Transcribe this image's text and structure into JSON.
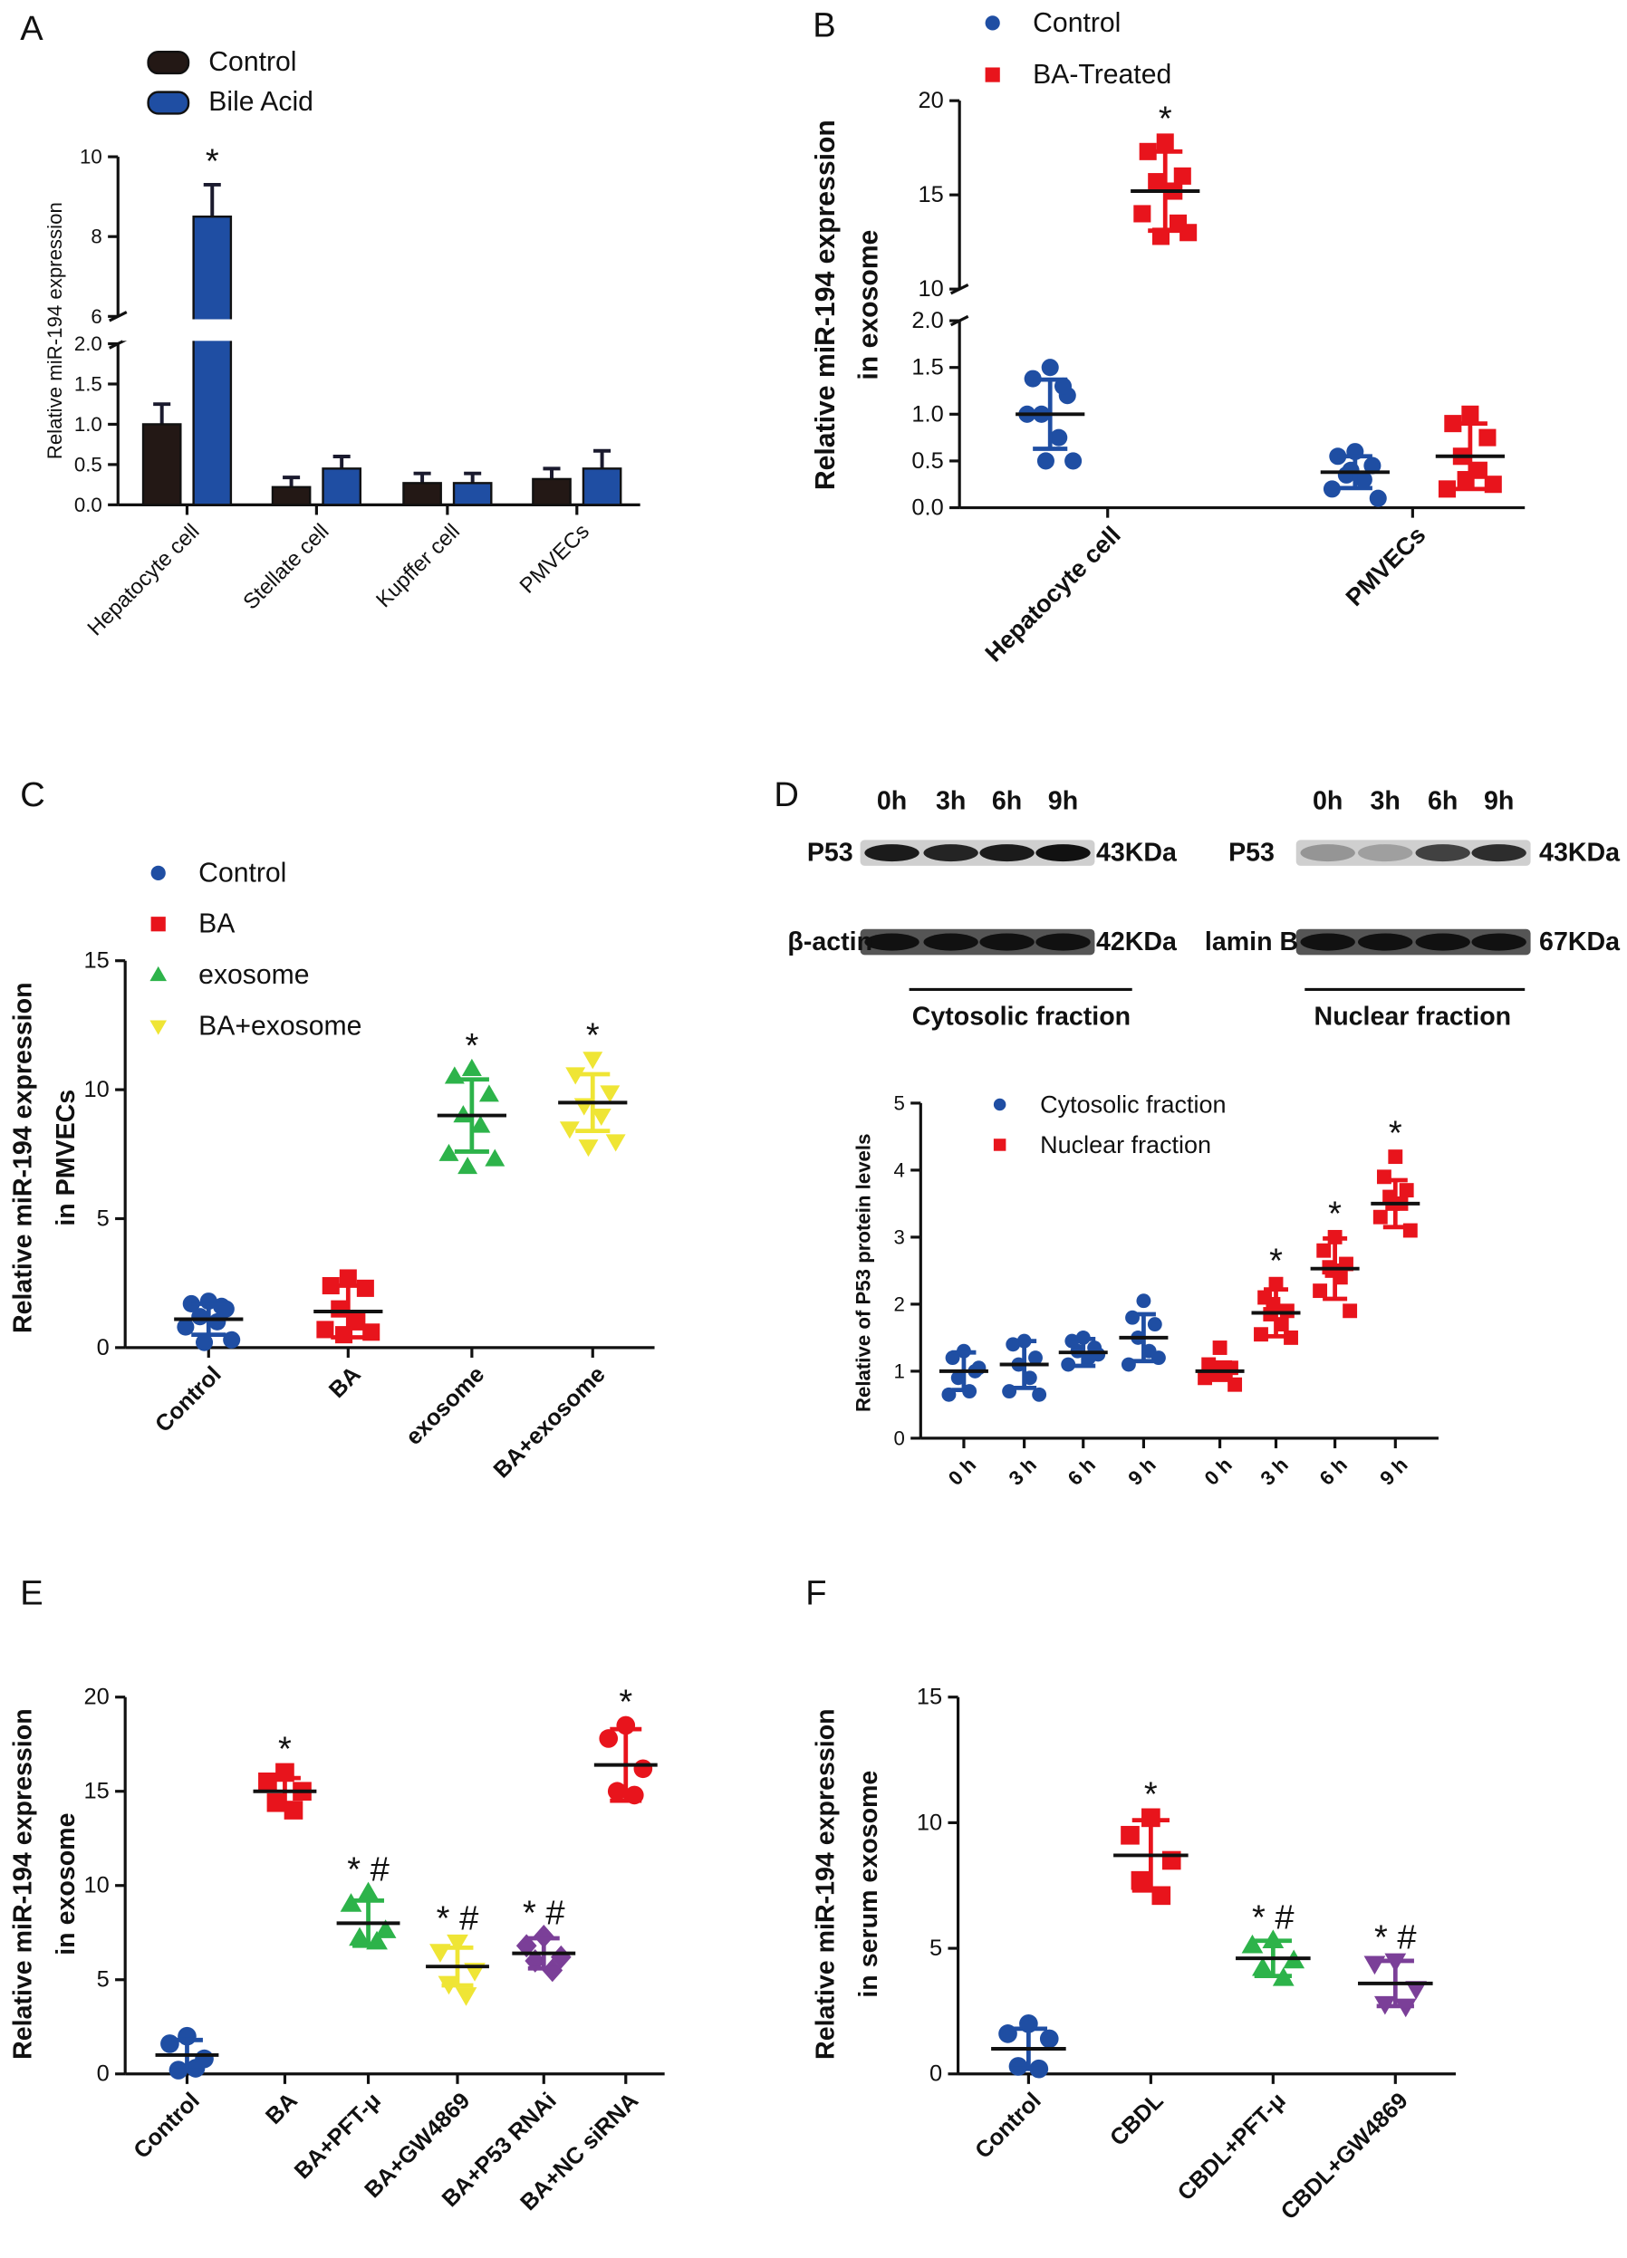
{
  "chart_data": [
    {
      "panel": "A",
      "type": "bar",
      "ylabel": "Relative miR-194 expression",
      "categories": [
        "Hepatocyte cell",
        "Stellate cell",
        "Kupffer cell",
        "PMVECs"
      ],
      "series": [
        {
          "name": "Control",
          "color": "#231815",
          "values": [
            1.0,
            0.22,
            0.27,
            0.32
          ],
          "errors": [
            0.25,
            0.12,
            0.12,
            0.13
          ]
        },
        {
          "name": "Bile Acid",
          "color": "#1f4ea3",
          "values": [
            8.5,
            0.45,
            0.27,
            0.45
          ],
          "errors": [
            0.8,
            0.15,
            0.12,
            0.22
          ],
          "labels": [
            "*",
            null,
            null,
            null
          ]
        }
      ],
      "ylim": [
        0,
        10
      ],
      "ybreak": [
        2,
        6
      ],
      "yticks": [
        {
          "value": 0,
          "label": "0.0"
        },
        0.5,
        {
          "value": 1,
          "label": "1.0"
        },
        1.5,
        {
          "value": 2,
          "label": "2.0"
        },
        6,
        8,
        10
      ]
    },
    {
      "panel": "B",
      "type": "dotplot",
      "ylabel": [
        "Relative miR-194 expression",
        "in exosome"
      ],
      "categories": [
        "Hepatocyte cell",
        "PMVECs"
      ],
      "series": [
        {
          "name": "Control",
          "color": "#1f4ea3",
          "marker": "circle",
          "means": [
            1.0,
            0.38
          ],
          "sds": [
            0.37,
            0.17
          ],
          "points": [
            [
              1.5,
              1.38,
              1.2,
              1.0,
              0.75,
              1.0,
              0.5,
              0.5,
              1.3
            ],
            [
              0.6,
              0.55,
              0.45,
              0.35,
              0.3,
              0.2,
              0.1,
              0.4
            ]
          ]
        },
        {
          "name": "BA-Treated",
          "color": "#e8141c",
          "marker": "square",
          "means": [
            15.2,
            0.55
          ],
          "sds": [
            2.1,
            0.35
          ],
          "points": [
            [
              17.8,
              17.3,
              16.0,
              15.7,
              15.2,
              14.0,
              13.0,
              12.8,
              13.5
            ],
            [
              1.0,
              0.9,
              0.75,
              0.55,
              0.4,
              0.2,
              0.25,
              0.3
            ]
          ],
          "labels": [
            "*",
            null
          ]
        }
      ],
      "ylim": [
        0,
        20
      ],
      "ybreak": [
        2,
        10
      ],
      "yticks": [
        {
          "value": 0,
          "label": "0.0"
        },
        0.5,
        {
          "value": 1,
          "label": "1.0"
        },
        1.5,
        {
          "value": 2,
          "label": "2.0"
        },
        10,
        15,
        20
      ]
    },
    {
      "panel": "C",
      "type": "dotplot",
      "ylabel": [
        "Relative miR-194 expression",
        "in PMVECs"
      ],
      "categories": [
        "Control",
        "BA",
        "exosome",
        "BA+exosome"
      ],
      "series": [
        {
          "name": "Control",
          "color": "#1f4ea3",
          "marker": "circle",
          "means": [
            1.1,
            null,
            null,
            null
          ],
          "sds": [
            0.6,
            null,
            null,
            null
          ],
          "points": [
            [
              1.8,
              1.7,
              1.5,
              1.2,
              1.0,
              0.8,
              0.3,
              0.2,
              1.6
            ],
            null,
            null,
            null
          ]
        },
        {
          "name": "BA",
          "color": "#e8141c",
          "marker": "square",
          "means": [
            null,
            1.4,
            null,
            null
          ],
          "sds": [
            null,
            1.0,
            null,
            null
          ],
          "points": [
            null,
            [
              2.7,
              2.4,
              2.3,
              1.5,
              1.0,
              0.7,
              0.6,
              0.5
            ],
            null,
            null
          ]
        },
        {
          "name": "exosome",
          "color": "#2db34a",
          "marker": "tri",
          "means": [
            null,
            null,
            9.0,
            null
          ],
          "sds": [
            null,
            null,
            1.4,
            null
          ],
          "points": [
            null,
            null,
            [
              10.8,
              10.5,
              9.8,
              9.0,
              8.6,
              7.5,
              7.3,
              7.0
            ],
            null
          ],
          "labels": [
            null,
            null,
            "*",
            null
          ]
        },
        {
          "name": "BA+exosome",
          "color": "#efe535",
          "marker": "dtri",
          "means": [
            null,
            null,
            null,
            9.5
          ],
          "sds": [
            null,
            null,
            null,
            1.1
          ],
          "points": [
            null,
            null,
            null,
            [
              11.2,
              10.6,
              9.9,
              9.4,
              9.0,
              8.5,
              8.0,
              7.8
            ]
          ],
          "labels": [
            null,
            null,
            null,
            "*"
          ]
        }
      ],
      "ylim": [
        0,
        15
      ],
      "yticks": [
        0,
        5,
        10,
        15
      ]
    },
    {
      "panel": "D",
      "type": "dotplot",
      "ylabel": "Relative of P53 protein levels",
      "blot": {
        "left": {
          "lanes": [
            "0h",
            "3h",
            "6h",
            "9h"
          ],
          "rows": [
            {
              "name": "P53",
              "size": "43KDa"
            },
            {
              "name": "β-actin",
              "size": "42KDa"
            }
          ],
          "fraction": "Cytosolic fraction"
        },
        "right": {
          "lanes": [
            "0h",
            "3h",
            "6h",
            "9h"
          ],
          "rows": [
            {
              "name": "P53",
              "size": "43KDa"
            },
            {
              "name": "lamin B",
              "size": "67KDa"
            }
          ],
          "fraction": "Nuclear fraction"
        }
      },
      "categories": [
        "0 h",
        "3 h",
        "6 h",
        "9 h",
        "0 h",
        "3 h",
        "6 h",
        "9 h"
      ],
      "series": [
        {
          "name": "Cytosolic fraction",
          "color": "#1f4ea3",
          "marker": "circle",
          "means": [
            1.0,
            1.1,
            1.28,
            1.5,
            null,
            null,
            null,
            null
          ],
          "sds": [
            0.28,
            0.35,
            0.2,
            0.35,
            null,
            null,
            null,
            null
          ],
          "points": [
            [
              1.3,
              1.2,
              1.0,
              0.9,
              0.7,
              0.65,
              1.05
            ],
            [
              1.45,
              1.4,
              1.2,
              1.1,
              0.9,
              0.7,
              0.65
            ],
            [
              1.5,
              1.45,
              1.35,
              1.3,
              1.2,
              1.1,
              1.25
            ],
            [
              2.05,
              1.8,
              1.7,
              1.5,
              1.3,
              1.1,
              1.2
            ],
            null,
            null,
            null,
            null
          ]
        },
        {
          "name": "Nuclear fraction",
          "color": "#e8141c",
          "marker": "square",
          "means": [
            null,
            null,
            null,
            null,
            1.0,
            1.87,
            2.53,
            3.5
          ],
          "sds": [
            null,
            null,
            null,
            null,
            0.13,
            0.35,
            0.45,
            0.35
          ],
          "points": [
            null,
            null,
            null,
            null,
            [
              1.35,
              1.1,
              1.05,
              1.0,
              0.95,
              0.9,
              0.8,
              1.0
            ],
            [
              2.3,
              2.1,
              1.9,
              1.85,
              1.7,
              1.55,
              1.5,
              2.0
            ],
            [
              3.0,
              2.8,
              2.6,
              2.55,
              2.4,
              2.2,
              1.9,
              2.5
            ],
            [
              4.2,
              3.9,
              3.7,
              3.6,
              3.5,
              3.3,
              3.1,
              3.5
            ]
          ],
          "labels": [
            null,
            null,
            null,
            null,
            null,
            "*",
            "*",
            "*"
          ]
        }
      ],
      "ylim": [
        0,
        5
      ],
      "yticks": [
        0,
        1,
        2,
        3,
        4,
        5
      ]
    },
    {
      "panel": "E",
      "type": "dotplot",
      "ylabel": [
        "Relative miR-194 expression",
        "in exosome"
      ],
      "categories": [
        "Control",
        "BA",
        "BA+PFT-μ",
        "BA+GW4869",
        "BA+P53 RNAi",
        "BA+NC siRNA"
      ],
      "series": [
        {
          "colors": [
            "#1f4ea3",
            "#e8141c",
            "#2db34a",
            "#efe535",
            "#7b3f98",
            "#e8141c"
          ],
          "markers": [
            "circle",
            "square",
            "tri",
            "dtri",
            "diamond",
            "circle"
          ],
          "means": [
            1.0,
            15.0,
            8.0,
            5.7,
            6.4,
            16.4
          ],
          "sds": [
            0.8,
            0.7,
            1.2,
            1.0,
            0.8,
            1.9
          ],
          "points": [
            [
              2.0,
              1.6,
              0.8,
              0.2,
              0.3
            ],
            [
              16.0,
              15.5,
              15.0,
              14.4,
              14.0
            ],
            [
              9.6,
              9.0,
              7.6,
              7.2,
              7.0
            ],
            [
              7.0,
              6.5,
              5.5,
              4.8,
              4.2
            ],
            [
              7.3,
              6.8,
              6.2,
              6.0,
              5.5
            ],
            [
              18.5,
              17.8,
              16.2,
              15.0,
              14.8
            ]
          ],
          "labels": [
            null,
            "*",
            "* #",
            "* #",
            "* #",
            "*"
          ]
        }
      ],
      "ylim": [
        0,
        20
      ],
      "yticks": [
        0,
        5,
        10,
        15,
        20
      ]
    },
    {
      "panel": "F",
      "type": "dotplot",
      "ylabel": [
        "Relative miR-194 expression",
        "in serum exosome"
      ],
      "categories": [
        "Control",
        "CBDL",
        "CBDL+PFT-μ",
        "CBDL+GW4869"
      ],
      "series": [
        {
          "colors": [
            "#1f4ea3",
            "#e8141c",
            "#2db34a",
            "#7b3f98"
          ],
          "markers": [
            "circle",
            "square",
            "tri",
            "dtri"
          ],
          "means": [
            1.0,
            8.7,
            4.6,
            3.6
          ],
          "sds": [
            0.8,
            1.4,
            0.7,
            0.9
          ],
          "points": [
            [
              2.0,
              1.6,
              1.4,
              0.3,
              0.2
            ],
            [
              10.2,
              9.5,
              8.5,
              7.7,
              7.1
            ],
            [
              5.3,
              5.1,
              4.5,
              4.2,
              3.8
            ],
            [
              4.5,
              4.4,
              3.4,
              2.8,
              2.7
            ]
          ],
          "labels": [
            null,
            "*",
            "* #",
            "* #"
          ]
        }
      ],
      "ylim": [
        0,
        15
      ],
      "yticks": [
        0,
        5,
        10,
        15
      ]
    }
  ]
}
